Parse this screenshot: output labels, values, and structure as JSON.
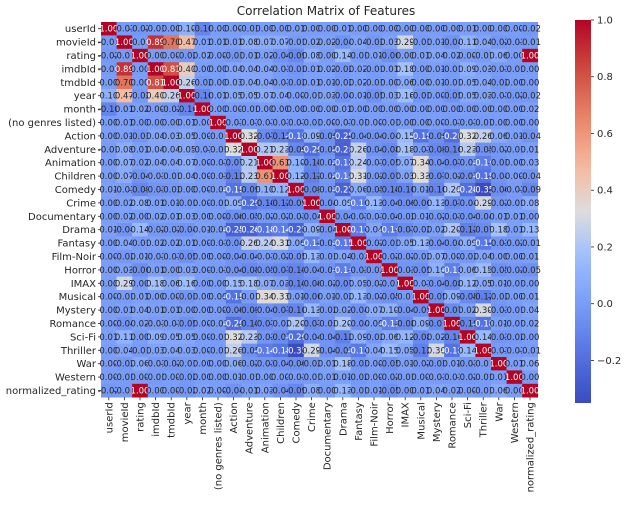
{
  "chart_data": {
    "type": "heatmap",
    "title": "Correlation Matrix of Features",
    "labels": [
      "userId",
      "movieId",
      "rating",
      "imdbId",
      "tmdbId",
      "year",
      "month",
      "(no genres listed)",
      "Action",
      "Adventure",
      "Animation",
      "Children",
      "Comedy",
      "Crime",
      "Documentary",
      "Drama",
      "Fantasy",
      "Film-Noir",
      "Horror",
      "IMAX",
      "Musical",
      "Mystery",
      "Romance",
      "Sci-Fi",
      "Thriller",
      "War",
      "Western",
      "normalized_rating"
    ],
    "matrix": [
      [
        1.0,
        -0.01,
        -0.02,
        -0.01,
        0.0,
        0.1,
        -0.1,
        0.0,
        0.0,
        -0.01,
        0.0,
        0.0,
        0.01,
        0.0,
        0.0,
        0.01,
        0.0,
        0.0,
        0.0,
        0.0,
        0.0,
        0.0,
        0.0,
        0.01,
        0.0,
        0.0,
        0.0,
        -0.02
      ],
      [
        -0.01,
        1.0,
        -0.01,
        0.89,
        0.7,
        0.47,
        0.01,
        0.01,
        0.01,
        0.08,
        0.07,
        0.07,
        -0.01,
        0.02,
        0.02,
        -0.04,
        0.04,
        -0.02,
        0.03,
        0.29,
        -0.01,
        0.01,
        -0.04,
        0.11,
        0.04,
        -0.02,
        -0.01,
        -0.01
      ],
      [
        -0.02,
        -0.01,
        1.0,
        0.0,
        0.0,
        -0.02,
        0.02,
        0.0,
        -0.03,
        0.01,
        0.02,
        -0.04,
        -0.09,
        0.08,
        0.0,
        0.14,
        -0.01,
        0.01,
        -0.06,
        0.0,
        0.01,
        0.04,
        0.02,
        0.0,
        -0.01,
        0.06,
        0.0,
        1.0
      ],
      [
        -0.01,
        0.89,
        0.0,
        1.0,
        0.81,
        0.4,
        0.0,
        0.0,
        0.04,
        0.04,
        0.04,
        -0.01,
        -0.03,
        0.01,
        0.02,
        -0.02,
        0.02,
        -0.01,
        0.01,
        0.18,
        0.0,
        0.01,
        -0.01,
        0.09,
        0.03,
        -0.01,
        -0.01,
        0.0
      ],
      [
        0.0,
        0.7,
        0.0,
        0.81,
        1.0,
        0.26,
        -0.02,
        0.0,
        0.03,
        0.04,
        0.04,
        -0.01,
        -0.02,
        0.01,
        0.01,
        -0.02,
        0.02,
        -0.01,
        0.0,
        0.06,
        0.0,
        0.01,
        -0.01,
        0.05,
        0.04,
        -0.02,
        0.0,
        0.0
      ],
      [
        0.1,
        0.47,
        -0.02,
        0.4,
        0.26,
        1.0,
        -0.1,
        0.01,
        0.05,
        0.05,
        0.07,
        0.04,
        0.0,
        -0.01,
        0.03,
        -0.04,
        0.01,
        -0.05,
        0.03,
        0.16,
        -0.03,
        0.0,
        -0.05,
        0.05,
        0.03,
        -0.01,
        -0.02,
        -0.02
      ],
      [
        -0.1,
        0.01,
        0.02,
        0.0,
        -0.02,
        -0.1,
        1.0,
        0.0,
        0.0,
        -0.01,
        0.0,
        0.0,
        0.0,
        0.0,
        0.0,
        0.01,
        0.0,
        0.0,
        0.0,
        0.0,
        0.0,
        0.0,
        0.0,
        0.0,
        0.0,
        0.0,
        0.0,
        0.02
      ],
      [
        0.0,
        0.01,
        0.0,
        0.0,
        0.0,
        0.01,
        0.0,
        1.0,
        -0.01,
        -0.01,
        -0.01,
        -0.01,
        -0.01,
        -0.01,
        0.0,
        -0.01,
        -0.01,
        0.0,
        -0.01,
        0.0,
        0.0,
        0.0,
        -0.01,
        -0.01,
        -0.01,
        0.0,
        0.0,
        0.0
      ],
      [
        0.0,
        0.01,
        -0.03,
        0.04,
        0.03,
        0.05,
        0.0,
        -0.01,
        1.0,
        0.32,
        -0.07,
        -0.12,
        -0.18,
        0.09,
        -0.06,
        -0.25,
        -0.04,
        -0.04,
        -0.04,
        0.15,
        -0.18,
        -0.06,
        -0.2,
        0.32,
        0.26,
        0.06,
        0.01,
        -0.04
      ],
      [
        -0.01,
        0.08,
        0.01,
        0.04,
        0.04,
        0.05,
        -0.01,
        -0.01,
        0.32,
        1.0,
        0.21,
        0.23,
        -0.09,
        -0.2,
        -0.05,
        -0.26,
        0.26,
        -0.04,
        -0.08,
        0.18,
        -0.01,
        -0.09,
        -0.1,
        0.23,
        -0.05,
        -0.02,
        -0.01,
        0.01
      ],
      [
        0.0,
        0.07,
        0.02,
        0.04,
        0.04,
        0.07,
        0.0,
        -0.01,
        -0.07,
        0.21,
        1.0,
        0.61,
        0.1,
        -0.1,
        -0.02,
        -0.18,
        0.24,
        -0.01,
        -0.05,
        0.07,
        0.34,
        -0.04,
        -0.07,
        -0.03,
        -0.14,
        -0.03,
        0.0,
        0.03
      ],
      [
        0.0,
        0.07,
        -0.04,
        -0.01,
        -0.01,
        0.04,
        0.0,
        -0.01,
        -0.12,
        0.23,
        0.61,
        1.0,
        0.12,
        -0.12,
        -0.02,
        -0.14,
        0.31,
        -0.02,
        -0.07,
        0.03,
        0.33,
        -0.07,
        -0.02,
        -0.07,
        -0.18,
        -0.04,
        0.0,
        -0.04
      ],
      [
        0.01,
        -0.01,
        -0.09,
        -0.03,
        -0.02,
        0.0,
        0.0,
        -0.01,
        -0.18,
        -0.09,
        0.1,
        0.12,
        1.0,
        -0.09,
        -0.03,
        -0.25,
        0.06,
        -0.05,
        -0.1,
        -0.1,
        0.01,
        -0.1,
        0.2,
        -0.2,
        -0.35,
        -0.06,
        -0.01,
        -0.09
      ],
      [
        0.0,
        0.02,
        0.08,
        0.01,
        0.01,
        -0.01,
        0.0,
        -0.01,
        0.09,
        -0.2,
        -0.1,
        -0.12,
        -0.09,
        1.0,
        -0.04,
        0.09,
        -0.13,
        0.13,
        -0.04,
        -0.06,
        -0.06,
        0.13,
        -0.07,
        -0.04,
        0.29,
        -0.02,
        -0.01,
        0.08
      ],
      [
        0.0,
        0.02,
        0.0,
        0.02,
        0.01,
        0.03,
        0.0,
        0.0,
        -0.06,
        -0.05,
        -0.02,
        -0.02,
        -0.03,
        -0.04,
        1.0,
        -0.04,
        -0.03,
        -0.01,
        -0.04,
        -0.02,
        0.01,
        -0.02,
        -0.03,
        -0.04,
        -0.04,
        0.01,
        0.01,
        0.0
      ],
      [
        0.01,
        -0.04,
        0.14,
        -0.02,
        -0.02,
        -0.04,
        0.01,
        -0.01,
        -0.25,
        -0.26,
        -0.18,
        -0.14,
        -0.25,
        0.09,
        -0.04,
        1.0,
        -0.15,
        0.04,
        -0.14,
        -0.07,
        -0.02,
        0.02,
        0.2,
        -0.12,
        -0.07,
        0.18,
        0.01,
        0.13
      ],
      [
        0.0,
        0.04,
        -0.01,
        0.02,
        0.02,
        0.01,
        0.0,
        -0.01,
        -0.04,
        0.26,
        0.24,
        0.31,
        0.06,
        -0.13,
        -0.03,
        -0.15,
        1.0,
        -0.02,
        -0.03,
        0.05,
        0.13,
        -0.04,
        -0.04,
        0.09,
        -0.15,
        -0.03,
        -0.02,
        -0.01
      ],
      [
        0.0,
        -0.02,
        0.01,
        -0.01,
        -0.01,
        -0.05,
        0.0,
        0.0,
        -0.04,
        -0.04,
        -0.01,
        -0.02,
        -0.05,
        0.13,
        -0.01,
        0.04,
        -0.02,
        1.0,
        -0.02,
        -0.02,
        -0.02,
        0.07,
        0.0,
        -0.02,
        0.04,
        0.0,
        0.0,
        0.01
      ],
      [
        0.0,
        0.03,
        -0.06,
        0.01,
        0.0,
        0.03,
        0.0,
        -0.01,
        -0.04,
        -0.08,
        -0.05,
        -0.07,
        -0.1,
        -0.04,
        -0.04,
        -0.14,
        -0.03,
        -0.02,
        1.0,
        -0.03,
        -0.05,
        0.1,
        -0.13,
        0.06,
        0.15,
        -0.05,
        -0.02,
        -0.05
      ],
      [
        0.0,
        0.29,
        0.0,
        0.18,
        0.06,
        0.16,
        0.0,
        0.0,
        0.15,
        0.18,
        0.07,
        0.03,
        -0.1,
        -0.06,
        -0.02,
        -0.07,
        0.05,
        -0.02,
        -0.03,
        1.0,
        -0.01,
        -0.04,
        -0.08,
        0.12,
        0.05,
        0.01,
        -0.01,
        0.0
      ],
      [
        0.0,
        -0.01,
        0.01,
        0.0,
        0.0,
        -0.03,
        0.0,
        0.0,
        -0.18,
        -0.01,
        0.34,
        0.33,
        0.01,
        -0.06,
        0.01,
        -0.02,
        0.13,
        -0.02,
        -0.05,
        -0.01,
        1.0,
        -0.05,
        0.09,
        -0.08,
        -0.12,
        -0.02,
        0.0,
        0.01
      ],
      [
        0.0,
        0.01,
        0.04,
        0.01,
        0.01,
        0.0,
        0.0,
        0.0,
        -0.06,
        -0.09,
        -0.04,
        -0.07,
        -0.1,
        0.13,
        -0.02,
        0.02,
        -0.04,
        0.07,
        0.1,
        -0.04,
        -0.05,
        1.0,
        -0.07,
        0.02,
        0.3,
        -0.03,
        -0.01,
        0.04
      ],
      [
        0.0,
        -0.04,
        0.02,
        -0.01,
        -0.01,
        -0.05,
        0.0,
        -0.01,
        -0.2,
        -0.1,
        -0.07,
        -0.02,
        0.2,
        -0.07,
        -0.03,
        0.2,
        -0.04,
        0.0,
        -0.13,
        -0.08,
        0.09,
        -0.07,
        1.0,
        -0.1,
        -0.18,
        0.01,
        -0.01,
        0.02
      ],
      [
        0.01,
        0.11,
        0.0,
        0.09,
        0.05,
        0.05,
        0.0,
        -0.01,
        0.32,
        0.23,
        -0.03,
        -0.07,
        -0.2,
        -0.04,
        -0.04,
        -0.12,
        0.09,
        -0.02,
        0.06,
        0.12,
        -0.08,
        0.02,
        -0.1,
        1.0,
        0.14,
        -0.03,
        -0.02,
        0.0
      ],
      [
        0.0,
        0.04,
        -0.01,
        0.03,
        0.04,
        0.03,
        0.0,
        -0.01,
        0.26,
        -0.05,
        -0.14,
        -0.18,
        -0.35,
        0.29,
        -0.04,
        -0.07,
        -0.15,
        0.04,
        0.15,
        0.05,
        -0.12,
        0.3,
        -0.18,
        0.14,
        1.0,
        -0.01,
        -0.01,
        -0.01
      ],
      [
        0.0,
        -0.02,
        0.06,
        -0.01,
        -0.02,
        -0.01,
        0.0,
        0.0,
        0.06,
        -0.02,
        -0.03,
        -0.04,
        -0.06,
        -0.02,
        0.01,
        0.18,
        -0.03,
        0.0,
        -0.05,
        0.01,
        -0.02,
        -0.03,
        0.01,
        -0.03,
        -0.01,
        1.0,
        0.01,
        0.06
      ],
      [
        0.0,
        -0.01,
        0.0,
        -0.01,
        0.0,
        -0.02,
        0.0,
        0.0,
        0.01,
        -0.01,
        0.0,
        0.0,
        -0.01,
        -0.01,
        0.01,
        0.01,
        -0.02,
        0.0,
        -0.02,
        -0.01,
        0.0,
        -0.01,
        -0.01,
        -0.02,
        -0.01,
        0.01,
        1.0,
        0.0
      ],
      [
        -0.02,
        -0.01,
        1.0,
        0.0,
        0.0,
        -0.02,
        0.02,
        0.0,
        -0.04,
        0.01,
        0.03,
        -0.04,
        -0.09,
        0.08,
        0.0,
        0.13,
        -0.01,
        0.01,
        -0.05,
        0.0,
        0.01,
        0.04,
        0.02,
        0.0,
        -0.01,
        0.06,
        0.0,
        1.0
      ]
    ],
    "colorbar": {
      "min": -0.35,
      "max": 1.0,
      "ticks": [
        1.0,
        0.8,
        0.6,
        0.4,
        0.2,
        0.0,
        -0.2
      ]
    },
    "colormap": "coolwarm",
    "annotations": true,
    "annotation_format": "0.00"
  }
}
